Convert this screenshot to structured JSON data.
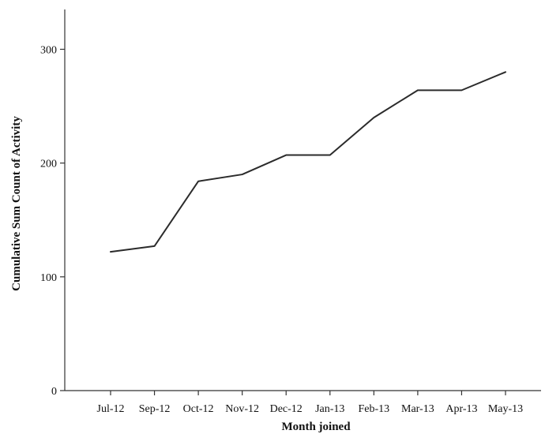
{
  "chart_data": {
    "type": "line",
    "title": "",
    "xlabel": "Month joined",
    "ylabel": "Cumulative Sum Count of Activity",
    "categories": [
      "Jul-12",
      "Sep-12",
      "Oct-12",
      "Nov-12",
      "Dec-12",
      "Jan-13",
      "Feb-13",
      "Mar-13",
      "Apr-13",
      "May-13"
    ],
    "series": [
      {
        "values": [
          122,
          127,
          184,
          190,
          207,
          207,
          240,
          264,
          264,
          280
        ],
        "color": "#2b2b2b"
      }
    ],
    "ylim": [
      0,
      335
    ],
    "yticks": [
      0,
      100,
      200,
      300
    ],
    "grid": false,
    "legend": "none"
  }
}
